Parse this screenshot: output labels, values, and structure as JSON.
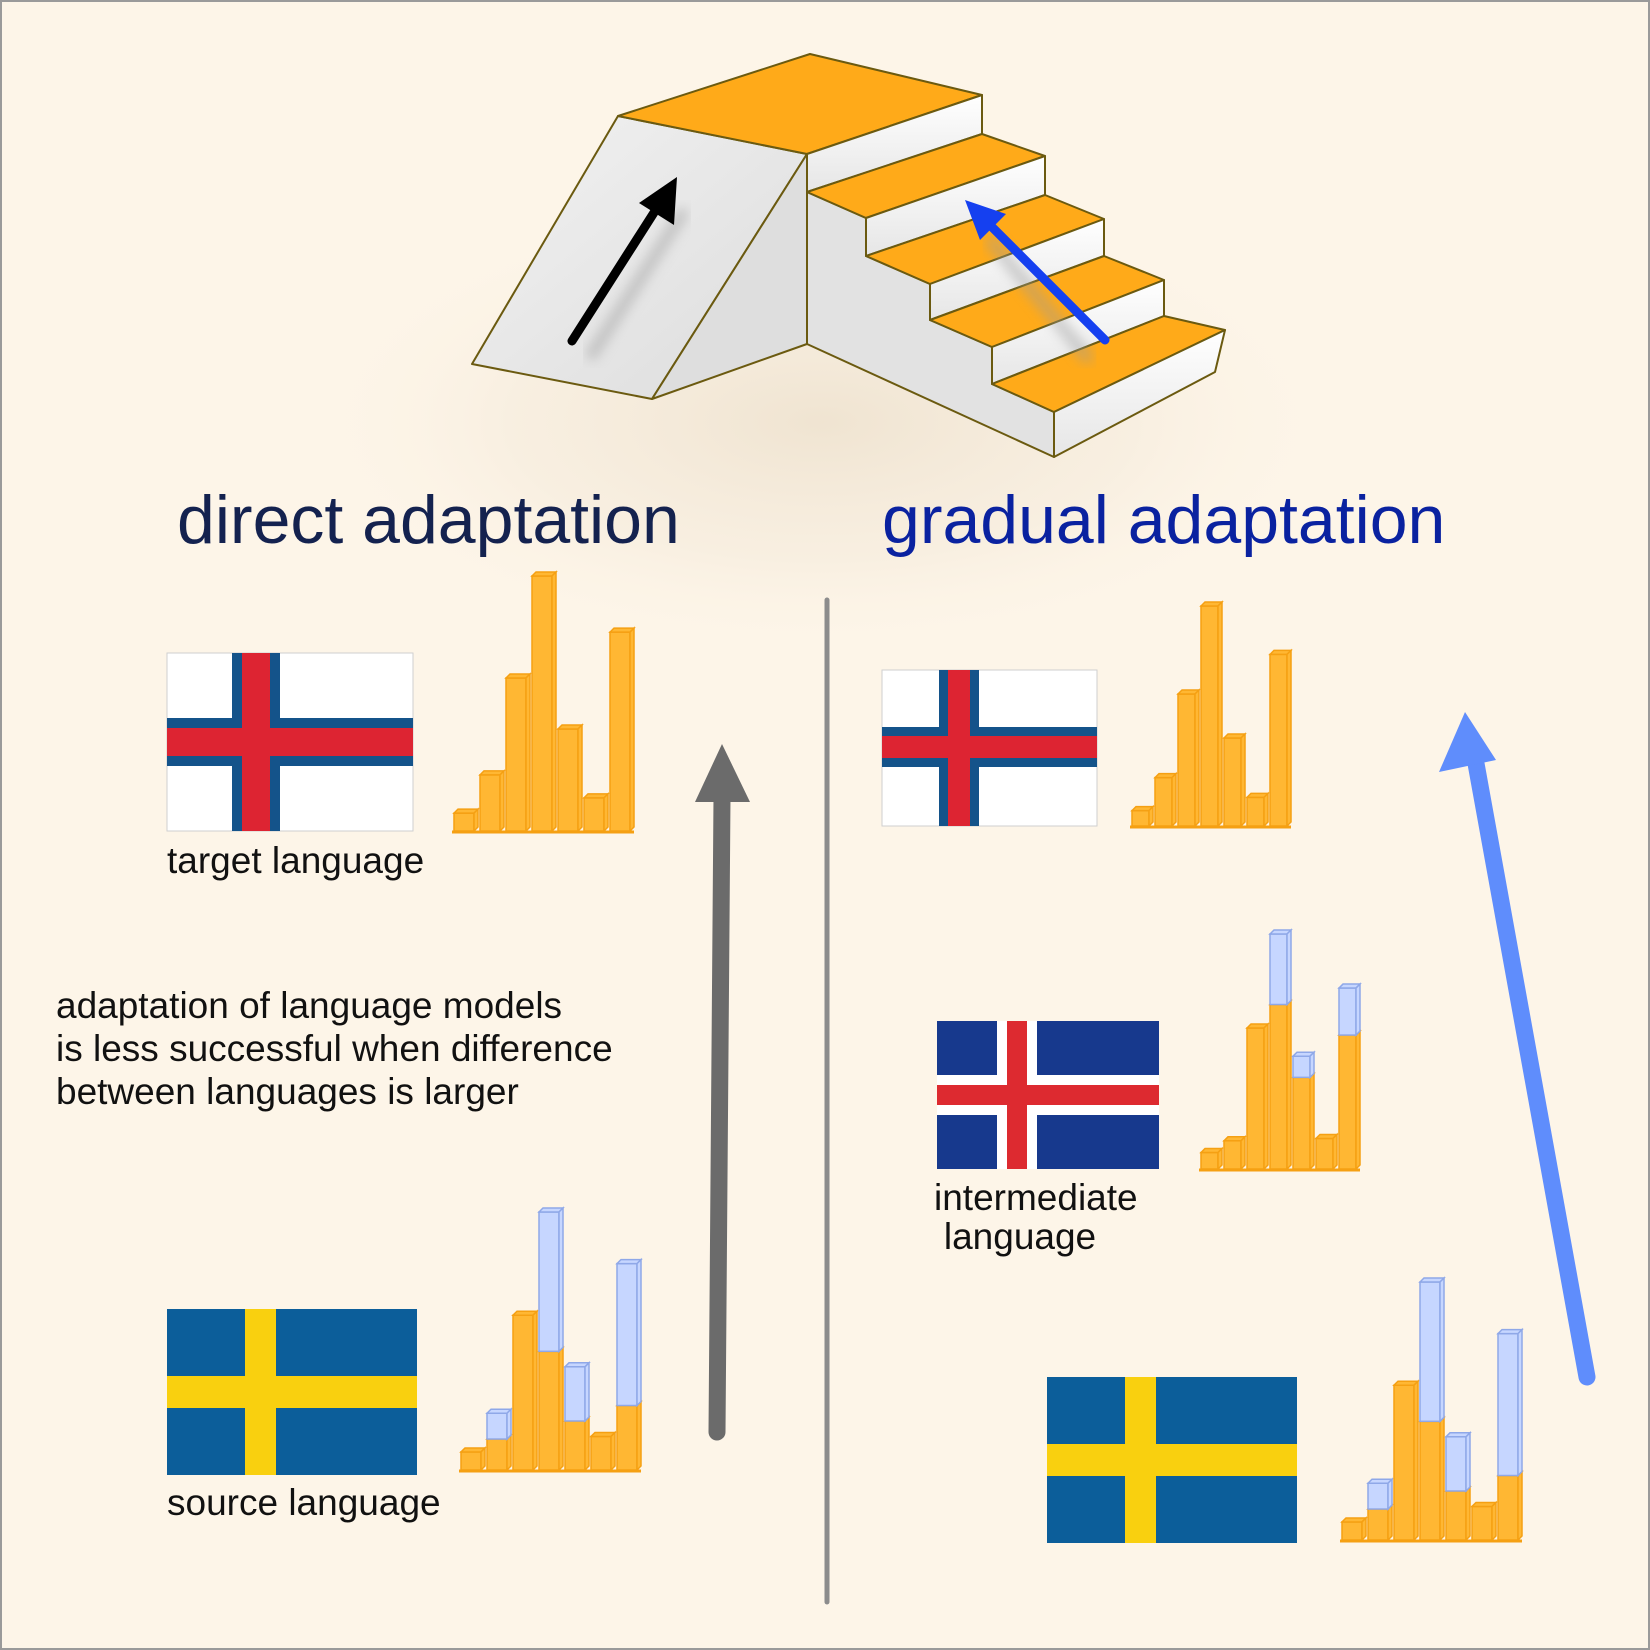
{
  "titles": {
    "direct": "direct adaptation",
    "gradual": "gradual adaptation"
  },
  "labels": {
    "target": "target language",
    "source": "source language",
    "intermediate_line1": "intermediate",
    "intermediate_line2": "language"
  },
  "note": {
    "line1": "adaptation of language models",
    "line2": "is less successful when difference",
    "line3": "between languages is larger"
  },
  "colors": {
    "background": "#fdf5e8",
    "bar_orange": "#ffb733",
    "bar_blue": "#c6d6ff",
    "stair_orange": "#ffaa19",
    "direct_title": "#14224f",
    "gradual_title": "#0a22a0",
    "arrow_gray": "#6b6b6b",
    "arrow_blue": "#5f8dfc"
  },
  "flags": {
    "target": "faroe-islands-flag",
    "intermediate": "iceland-flag",
    "source": "sweden-flag"
  },
  "chart_data": [
    {
      "type": "bar",
      "name": "target-distribution-left",
      "values": [
        {
          "o": 0.07
        },
        {
          "o": 0.22
        },
        {
          "o": 0.6
        },
        {
          "o": 1.0
        },
        {
          "o": 0.4
        },
        {
          "o": 0.13
        },
        {
          "o": 0.78
        }
      ]
    },
    {
      "type": "bar",
      "name": "source-distribution-left",
      "values": [
        {
          "o": 0.07
        },
        {
          "o": 0.12,
          "b": 0.1
        },
        {
          "o": 0.6
        },
        {
          "o": 0.46,
          "b": 0.54
        },
        {
          "o": 0.19,
          "b": 0.21
        },
        {
          "o": 0.13
        },
        {
          "o": 0.25,
          "b": 0.55
        }
      ]
    },
    {
      "type": "bar",
      "name": "target-distribution-right",
      "values": [
        {
          "o": 0.07
        },
        {
          "o": 0.22
        },
        {
          "o": 0.6
        },
        {
          "o": 1.0
        },
        {
          "o": 0.4
        },
        {
          "o": 0.13
        },
        {
          "o": 0.78
        }
      ]
    },
    {
      "type": "bar",
      "name": "intermediate-distribution",
      "values": [
        {
          "o": 0.07
        },
        {
          "o": 0.12
        },
        {
          "o": 0.6
        },
        {
          "o": 0.7,
          "b": 0.3
        },
        {
          "o": 0.39,
          "b": 0.09
        },
        {
          "o": 0.13
        },
        {
          "o": 0.57,
          "b": 0.2
        }
      ]
    },
    {
      "type": "bar",
      "name": "source-distribution-right",
      "values": [
        {
          "o": 0.07
        },
        {
          "o": 0.12,
          "b": 0.1
        },
        {
          "o": 0.6
        },
        {
          "o": 0.46,
          "b": 0.54
        },
        {
          "o": 0.19,
          "b": 0.21
        },
        {
          "o": 0.13
        },
        {
          "o": 0.25,
          "b": 0.55
        }
      ]
    }
  ]
}
